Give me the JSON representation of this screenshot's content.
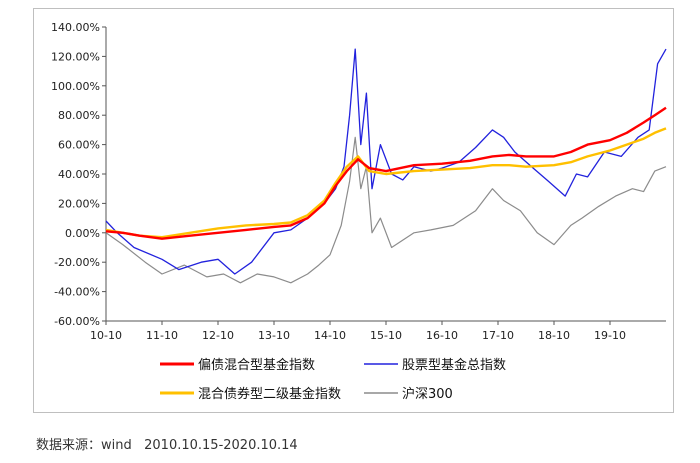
{
  "chart_data": {
    "type": "line",
    "title": "",
    "xlabel": "",
    "ylabel": "",
    "ylim": [
      -60,
      140
    ],
    "yticks": [
      "140.00%",
      "120.00%",
      "100.00%",
      "80.00%",
      "60.00%",
      "40.00%",
      "20.00%",
      "0.00%",
      "-20.00%",
      "-40.00%",
      "-60.00%"
    ],
    "xticks": [
      "10-10",
      "11-10",
      "12-10",
      "13-10",
      "14-10",
      "15-10",
      "16-10",
      "17-10",
      "18-10",
      "19-10"
    ],
    "grid": false,
    "legend_position": "bottom",
    "series": [
      {
        "name": "偏债混合型基金指数",
        "color": "#ff0000",
        "x": [
          0,
          0.3,
          0.6,
          1.0,
          1.5,
          2.0,
          2.5,
          3.0,
          3.3,
          3.6,
          3.9,
          4.1,
          4.3,
          4.5,
          4.7,
          5.0,
          5.5,
          6.0,
          6.5,
          6.9,
          7.2,
          7.5,
          8.0,
          8.3,
          8.6,
          9.0,
          9.3,
          9.6,
          9.8,
          10.0
        ],
        "values": [
          1,
          0,
          -2,
          -4,
          -2,
          0,
          2,
          4,
          5,
          10,
          20,
          32,
          42,
          50,
          44,
          42,
          46,
          47,
          49,
          52,
          53,
          52,
          52,
          55,
          60,
          63,
          68,
          75,
          80,
          85
        ]
      },
      {
        "name": "股票型基金总指数",
        "color": "#2222dd",
        "x": [
          0,
          0.2,
          0.5,
          1.0,
          1.3,
          1.7,
          2.0,
          2.3,
          2.6,
          3.0,
          3.3,
          3.6,
          3.9,
          4.1,
          4.25,
          4.35,
          4.45,
          4.55,
          4.65,
          4.75,
          4.9,
          5.1,
          5.3,
          5.5,
          5.8,
          6.0,
          6.3,
          6.6,
          6.9,
          7.1,
          7.3,
          7.6,
          7.9,
          8.2,
          8.4,
          8.6,
          8.9,
          9.2,
          9.5,
          9.7,
          9.85,
          10.0
        ],
        "values": [
          8,
          0,
          -10,
          -18,
          -25,
          -20,
          -18,
          -28,
          -20,
          0,
          2,
          10,
          20,
          30,
          45,
          80,
          125,
          60,
          95,
          30,
          60,
          40,
          36,
          45,
          42,
          44,
          48,
          58,
          70,
          65,
          55,
          45,
          35,
          25,
          40,
          38,
          55,
          52,
          65,
          70,
          115,
          125
        ]
      },
      {
        "name": "混合债券型二级基金指数",
        "color": "#ffc000",
        "x": [
          0,
          0.3,
          0.6,
          1.0,
          1.5,
          2.0,
          2.5,
          3.0,
          3.3,
          3.6,
          3.9,
          4.1,
          4.3,
          4.5,
          4.7,
          5.0,
          5.5,
          6.0,
          6.5,
          6.9,
          7.2,
          7.5,
          8.0,
          8.3,
          8.6,
          9.0,
          9.3,
          9.6,
          9.8,
          10.0
        ],
        "values": [
          2,
          0,
          -2,
          -3,
          0,
          3,
          5,
          6,
          7,
          12,
          22,
          34,
          45,
          52,
          42,
          40,
          42,
          43,
          44,
          46,
          46,
          45,
          46,
          48,
          52,
          56,
          60,
          64,
          68,
          71
        ]
      },
      {
        "name": "沪深300",
        "color": "#8c8c8c",
        "x": [
          0,
          0.3,
          0.7,
          1.0,
          1.4,
          1.8,
          2.1,
          2.4,
          2.7,
          3.0,
          3.3,
          3.6,
          3.8,
          4.0,
          4.2,
          4.35,
          4.45,
          4.55,
          4.65,
          4.75,
          4.9,
          5.1,
          5.3,
          5.5,
          5.8,
          6.2,
          6.6,
          6.9,
          7.1,
          7.4,
          7.7,
          8.0,
          8.3,
          8.5,
          8.8,
          9.1,
          9.4,
          9.6,
          9.8,
          10.0
        ],
        "values": [
          0,
          -8,
          -20,
          -28,
          -22,
          -30,
          -28,
          -34,
          -28,
          -30,
          -34,
          -28,
          -22,
          -15,
          5,
          35,
          65,
          30,
          45,
          0,
          10,
          -10,
          -5,
          0,
          2,
          5,
          15,
          30,
          22,
          15,
          0,
          -8,
          5,
          10,
          18,
          25,
          30,
          28,
          42,
          45
        ]
      }
    ]
  },
  "source_note": "数据来源：wind   2010.10.15-2020.10.14"
}
